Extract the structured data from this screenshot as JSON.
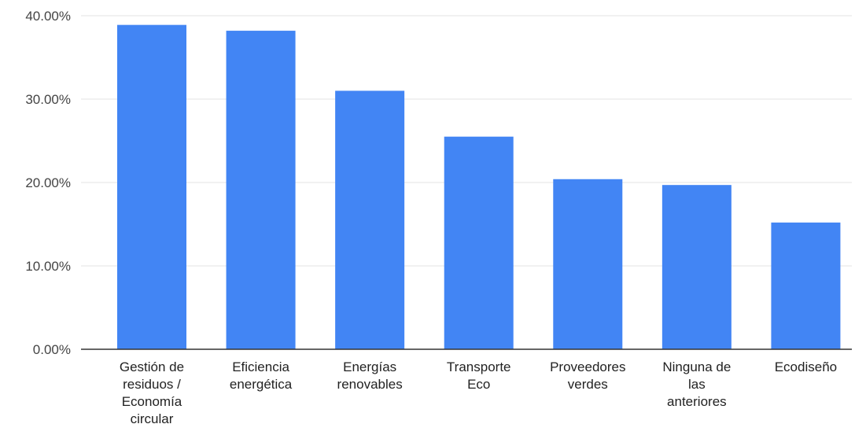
{
  "chart_data": {
    "type": "bar",
    "title": "",
    "xlabel": "",
    "ylabel": "",
    "categories": [
      [
        "Gestión de",
        "residuos /",
        "Economía",
        "circular"
      ],
      [
        "Eficiencia",
        "energética"
      ],
      [
        "Energías",
        "renovables"
      ],
      [
        "Transporte",
        "Eco"
      ],
      [
        "Proveedores",
        "verdes"
      ],
      [
        "Ninguna de",
        "las",
        "anteriores"
      ],
      [
        "Ecodiseño"
      ]
    ],
    "series": [
      {
        "values": [
          38.9,
          38.2,
          31.0,
          25.5,
          20.4,
          19.7,
          15.2
        ]
      }
    ],
    "ylim": [
      0,
      40
    ],
    "yticks": [
      0,
      10,
      20,
      30,
      40
    ],
    "ytick_labels": [
      "0.00%",
      "10.00%",
      "20.00%",
      "30.00%",
      "40.00%"
    ],
    "bar_color": "#4285f4",
    "grid": true,
    "legend": "none"
  }
}
